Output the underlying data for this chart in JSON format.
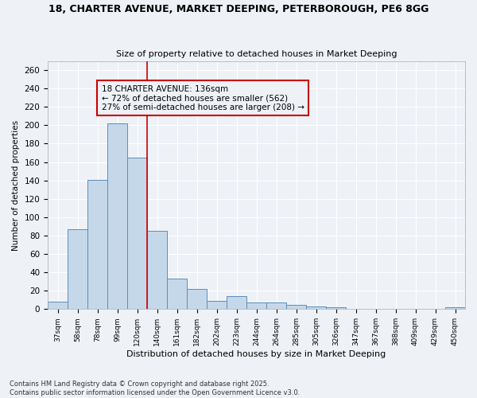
{
  "title_line1": "18, CHARTER AVENUE, MARKET DEEPING, PETERBOROUGH, PE6 8GG",
  "title_line2": "Size of property relative to detached houses in Market Deeping",
  "xlabel": "Distribution of detached houses by size in Market Deeping",
  "ylabel": "Number of detached properties",
  "categories": [
    "37sqm",
    "58sqm",
    "78sqm",
    "99sqm",
    "120sqm",
    "140sqm",
    "161sqm",
    "182sqm",
    "202sqm",
    "223sqm",
    "244sqm",
    "264sqm",
    "285sqm",
    "305sqm",
    "326sqm",
    "347sqm",
    "367sqm",
    "388sqm",
    "409sqm",
    "429sqm",
    "450sqm"
  ],
  "values": [
    8,
    87,
    141,
    202,
    165,
    85,
    33,
    22,
    9,
    14,
    7,
    7,
    5,
    3,
    2,
    0,
    0,
    0,
    0,
    0,
    2
  ],
  "bar_color": "#c5d8ea",
  "bar_edge_color": "#5b8db8",
  "vline_x": 5,
  "vline_color": "#cc0000",
  "annotation_box_color": "#cc0000",
  "annotation_line1": "18 CHARTER AVENUE: 136sqm",
  "annotation_line2": "← 72% of detached houses are smaller (562)",
  "annotation_line3": "27% of semi-detached houses are larger (208) →",
  "background_color": "#eef2f7",
  "grid_color": "#ffffff",
  "footer_line1": "Contains HM Land Registry data © Crown copyright and database right 2025.",
  "footer_line2": "Contains public sector information licensed under the Open Government Licence v3.0.",
  "ylim": [
    0,
    270
  ],
  "yticks": [
    0,
    20,
    40,
    60,
    80,
    100,
    120,
    140,
    160,
    180,
    200,
    220,
    240,
    260
  ]
}
